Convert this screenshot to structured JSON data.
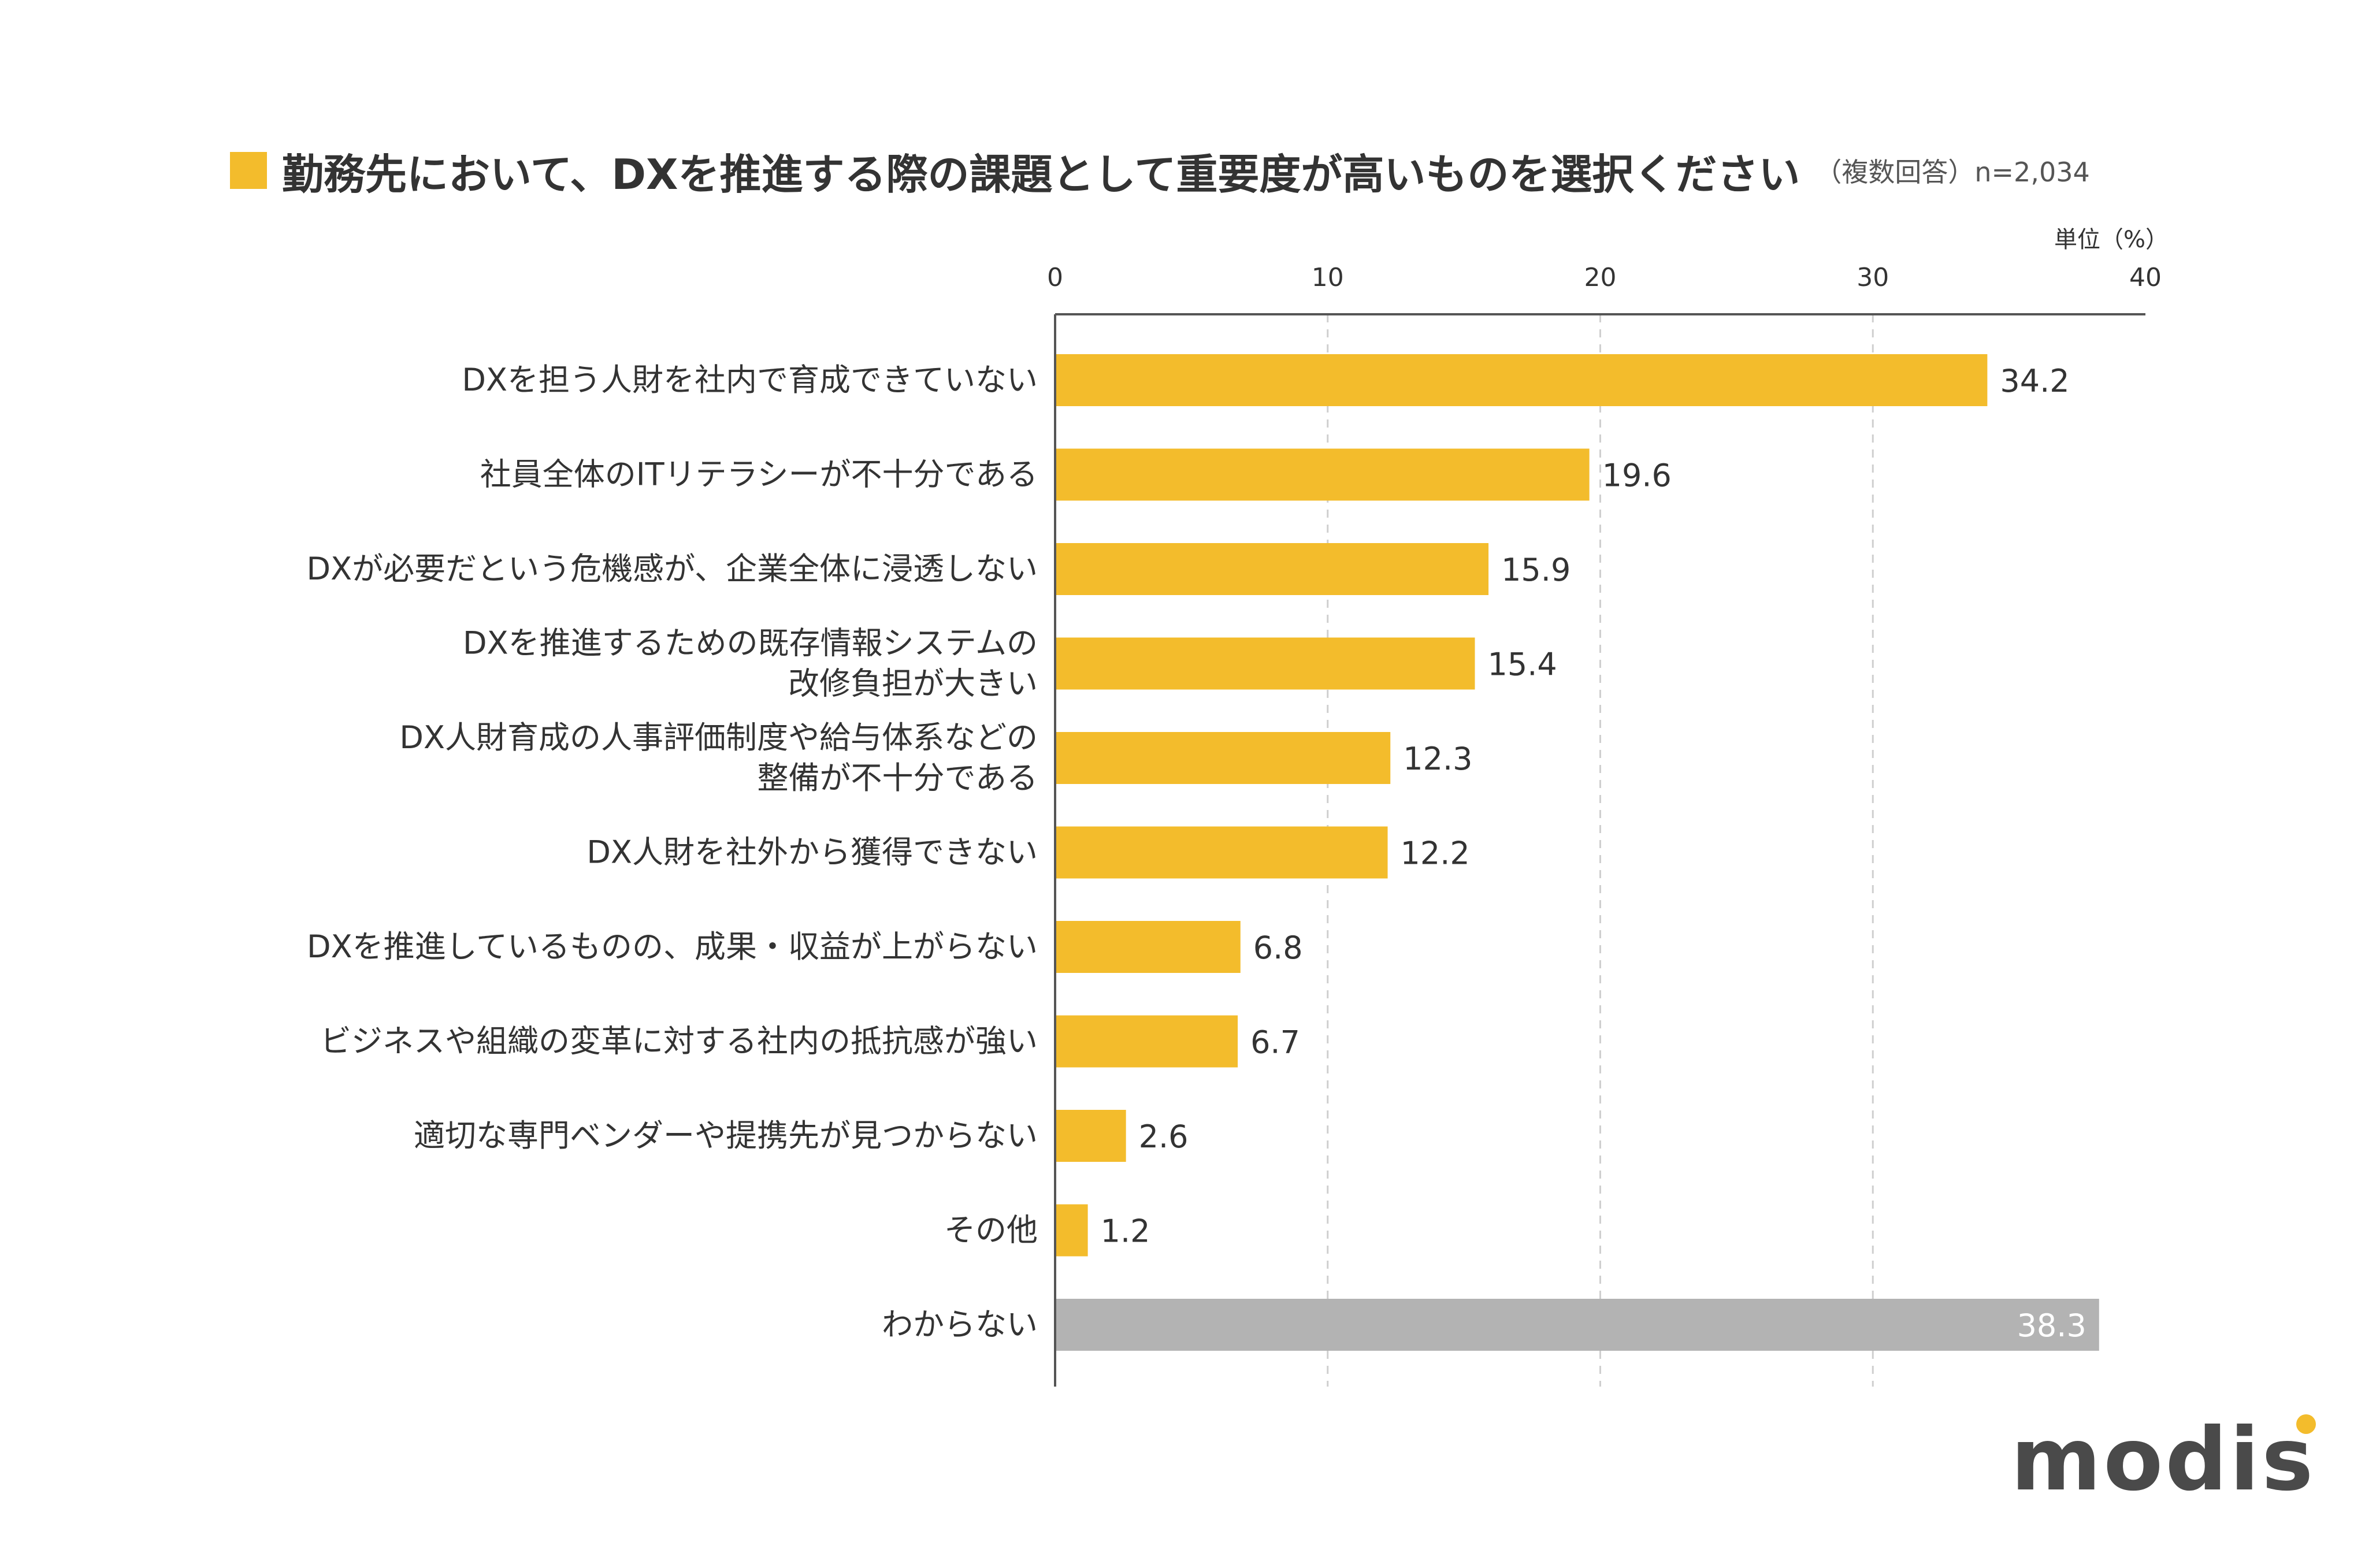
{
  "title": {
    "text": "勤務先において、DXを推進する際の課題として重要度が高いものを選択ください",
    "note": "（複数回答）n=2,034",
    "square_color": "#f3bc2c"
  },
  "logo": {
    "text": "modis",
    "dot_color": "#f3bc2c"
  },
  "chart_data": {
    "type": "bar",
    "orientation": "horizontal",
    "unit_label": "単位（%）",
    "xlim": [
      0,
      40
    ],
    "ticks": [
      0,
      10,
      20,
      30,
      40
    ],
    "grid": true,
    "categories": [
      [
        "DXを担う人財を社内で育成できていない"
      ],
      [
        "社員全体のITリテラシーが不十分である"
      ],
      [
        "DXが必要だという危機感が、企業全体に浸透しない"
      ],
      [
        "DXを推進するための既存情報システムの",
        "改修負担が大きい"
      ],
      [
        "DX人財育成の人事評価制度や給与体系などの",
        "整備が不十分である"
      ],
      [
        "DX人財を社外から獲得できない"
      ],
      [
        "DXを推進しているものの、成果・収益が上がらない"
      ],
      [
        "ビジネスや組織の変革に対する社内の抵抗感が強い"
      ],
      [
        "適切な専門ベンダーや提携先が見つからない"
      ],
      [
        "その他"
      ],
      [
        "わからない"
      ]
    ],
    "values": [
      34.2,
      19.6,
      15.9,
      15.4,
      12.3,
      12.2,
      6.8,
      6.7,
      2.6,
      1.2,
      38.3
    ],
    "value_labels": [
      "34.2",
      "19.6",
      "15.9",
      "15.4",
      "12.3",
      "12.2",
      "6.8",
      "6.7",
      "2.6",
      "1.2",
      "38.3"
    ],
    "colors": [
      "#f3bc2c",
      "#f3bc2c",
      "#f3bc2c",
      "#f3bc2c",
      "#f3bc2c",
      "#f3bc2c",
      "#f3bc2c",
      "#f3bc2c",
      "#f3bc2c",
      "#f3bc2c",
      "#b3b3b3"
    ]
  }
}
